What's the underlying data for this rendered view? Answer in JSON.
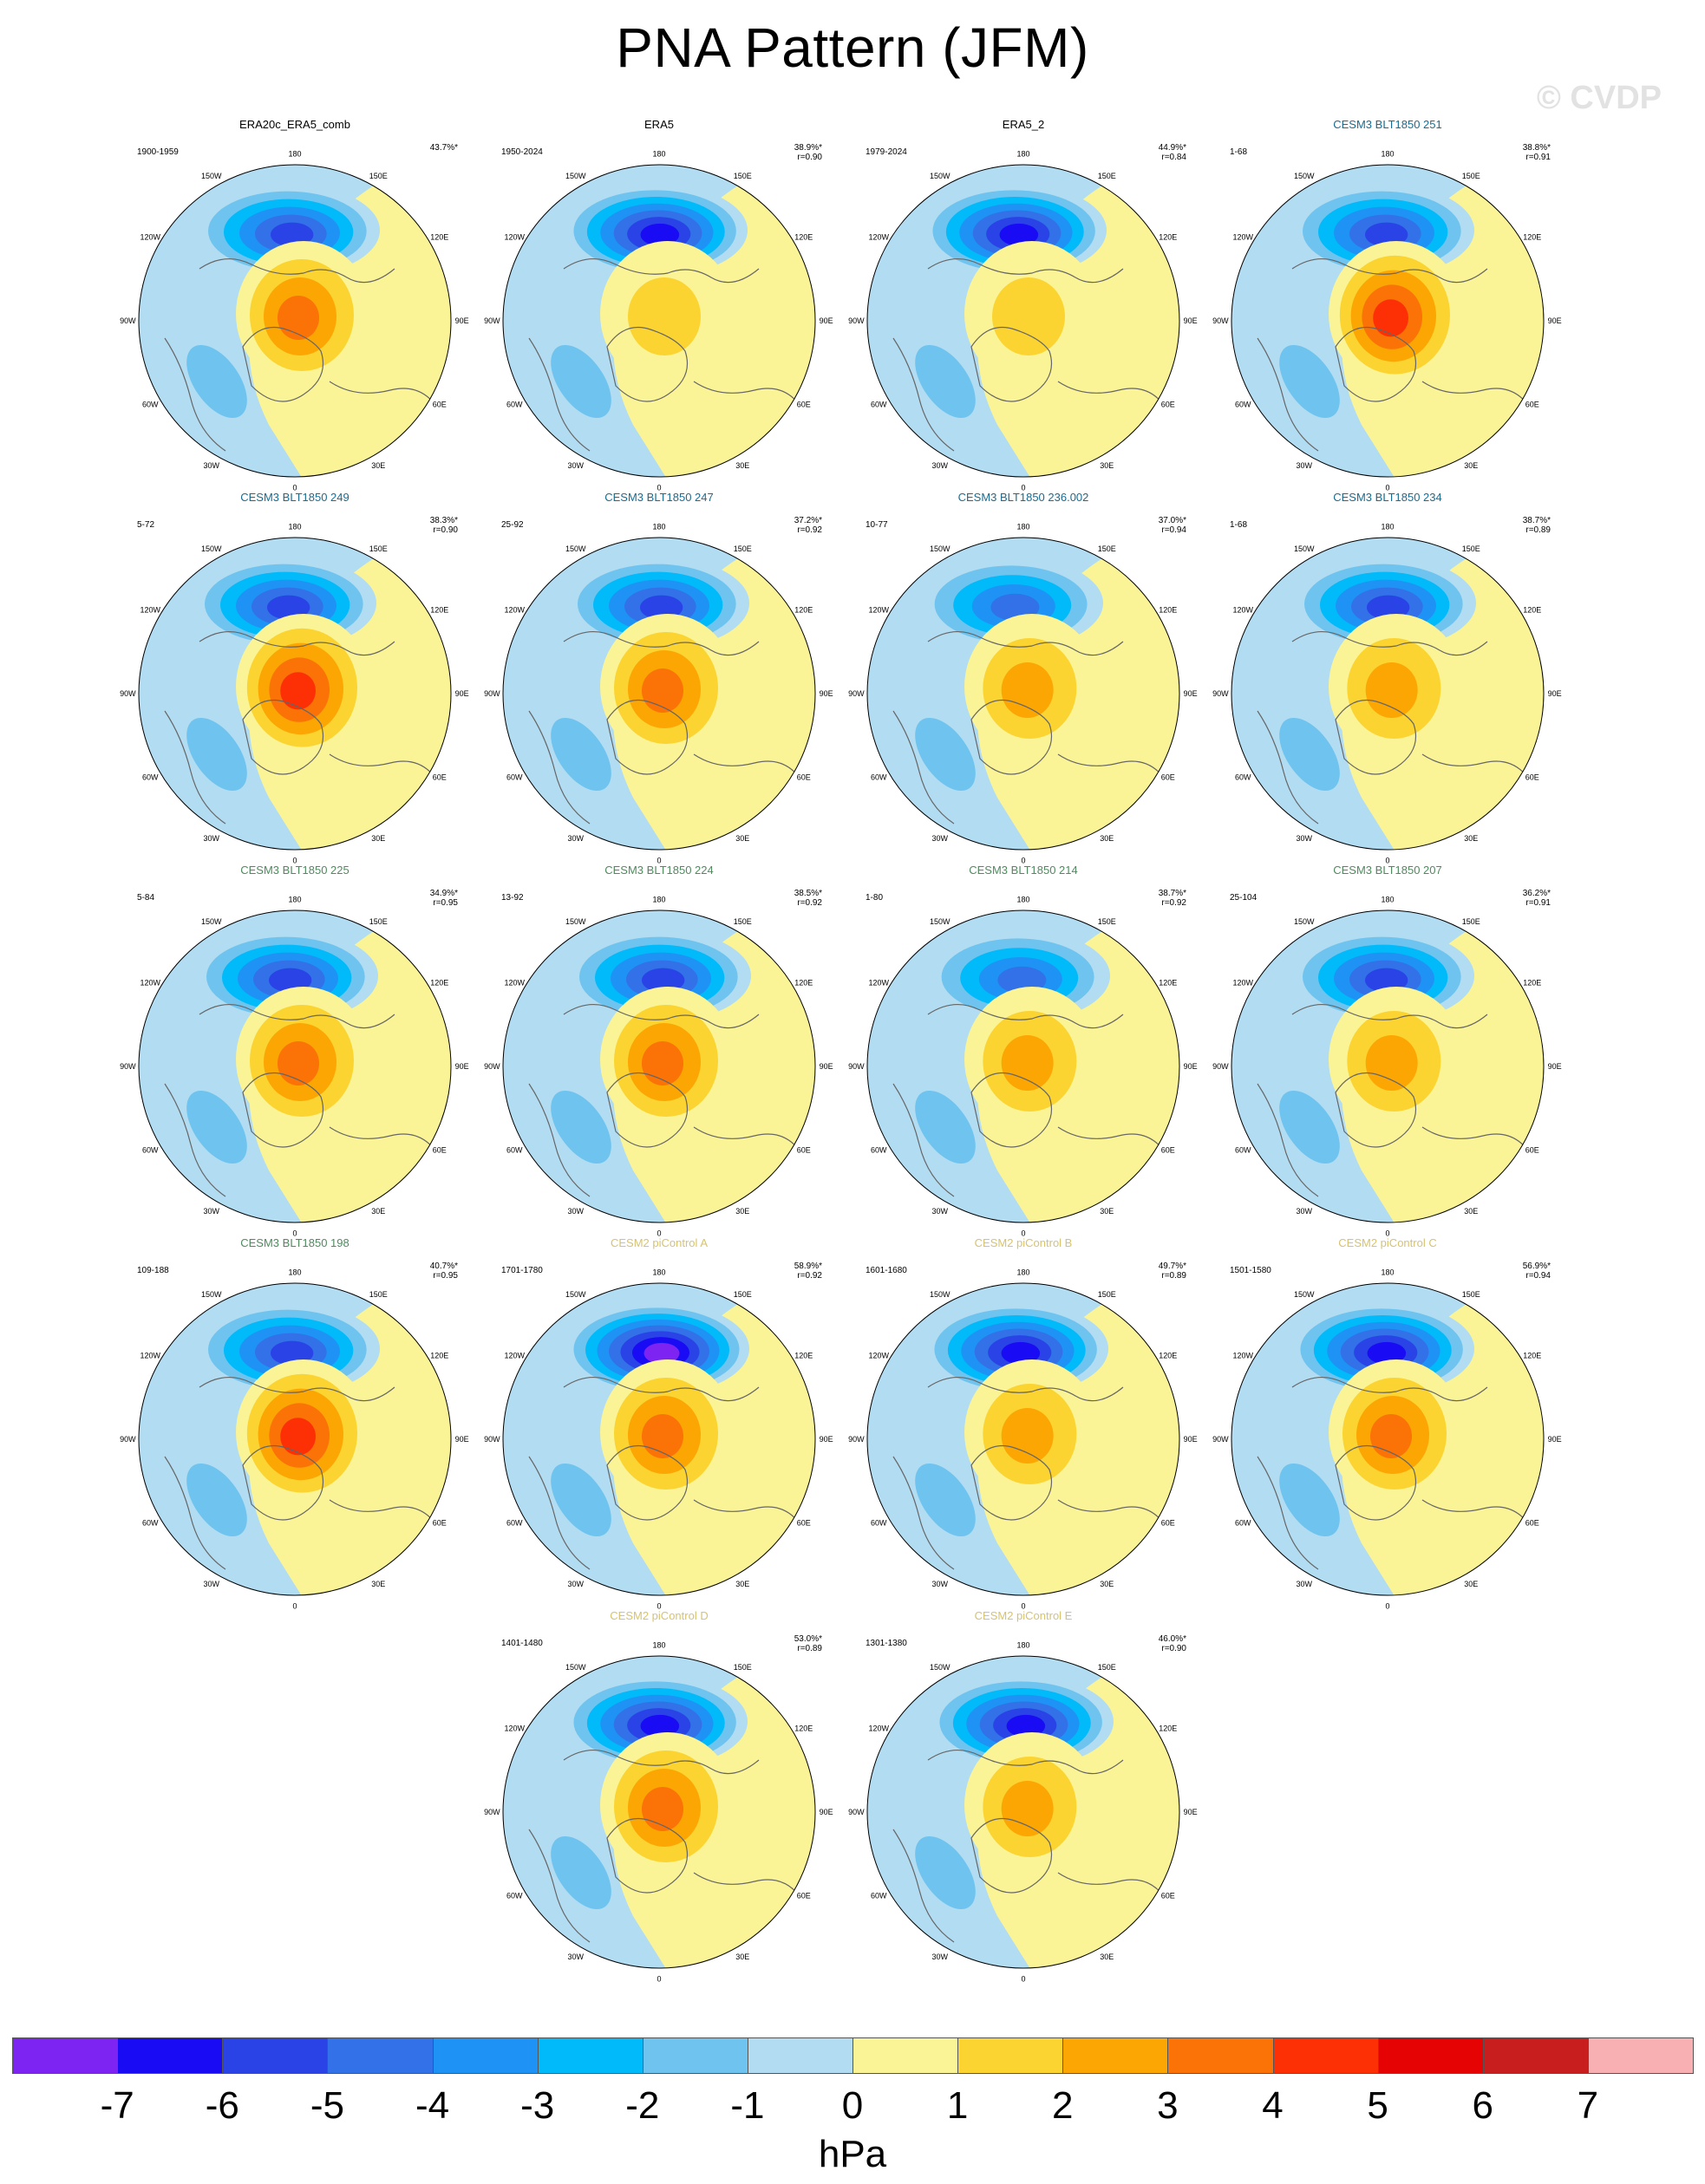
{
  "title": "PNA Pattern (JFM)",
  "watermark": "© CVDP",
  "chart_data": {
    "type": "polar-map-grid",
    "projection": "north-polar-stereographic",
    "variable": "sea level pressure PNA regression",
    "units": "hPa",
    "colorbar": {
      "ticks": [
        "-7",
        "-6",
        "-5",
        "-4",
        "-3",
        "-2",
        "-1",
        "0",
        "1",
        "2",
        "3",
        "4",
        "5",
        "6",
        "7"
      ],
      "colors": [
        "#7d23f2",
        "#1a0bf5",
        "#2a43e7",
        "#3271e8",
        "#1e93f5",
        "#00baf9",
        "#6ec4ef",
        "#b2dcf2",
        "#fbf496",
        "#fbd431",
        "#fca603",
        "#fb7207",
        "#fc3004",
        "#e50303",
        "#c91e1e",
        "#f8b0b2"
      ],
      "unit_label": "hPa"
    },
    "lon_labels": [
      "180",
      "150E",
      "120E",
      "90E",
      "60E",
      "30E",
      "0",
      "30W",
      "60W",
      "90W",
      "120W",
      "150W"
    ],
    "panels": [
      {
        "title": "ERA20c_ERA5_comb",
        "years": "1900-1959",
        "pct": "43.7%*",
        "r": "",
        "color": "#000000",
        "center": 3.5,
        "low": -6.0,
        "ltx": -0.5
      },
      {
        "title": "ERA5",
        "years": "1950-2024",
        "pct": "38.9%*",
        "r": "r=0.90",
        "color": "#000000",
        "center": 1.5,
        "low": -6.2,
        "ltx": -0.3
      },
      {
        "title": "ERA5_2",
        "years": "1979-2024",
        "pct": "44.9%*",
        "r": "r=0.84",
        "color": "#000000",
        "center": 1.2,
        "low": -6.5,
        "ltx": -0.6
      },
      {
        "title": "CESM3 BLT1850 251",
        "years": "1-68",
        "pct": "38.8%*",
        "r": "r=0.91",
        "color": "#1a6b8f",
        "center": 4.5,
        "low": -5.5,
        "ltx": -0.4
      },
      {
        "title": "CESM3 BLT1850 249",
        "years": "5-72",
        "pct": "38.3%*",
        "r": "r=0.90",
        "color": "#1a6b8f",
        "center": 4.2,
        "low": -5.5,
        "ltx": -0.7
      },
      {
        "title": "CESM3 BLT1850 247",
        "years": "25-92",
        "pct": "37.2%*",
        "r": "r=0.92",
        "color": "#1a6b8f",
        "center": 3.3,
        "low": -5.5,
        "ltx": -0.2
      },
      {
        "title": "CESM3 BLT1850 236.002",
        "years": "10-77",
        "pct": "37.0%*",
        "r": "r=0.94",
        "color": "#1a6b8f",
        "center": 3.0,
        "low": -5.0,
        "ltx": -0.8
      },
      {
        "title": "CESM3 BLT1850 234",
        "years": "1-68",
        "pct": "38.7%*",
        "r": "r=0.89",
        "color": "#1a6b8f",
        "center": 2.8,
        "low": -5.6,
        "ltx": -0.3
      },
      {
        "title": "CESM3 BLT1850 225",
        "years": "5-84",
        "pct": "34.9%*",
        "r": "r=0.95",
        "color": "#4f8a5e",
        "center": 3.2,
        "low": -5.2,
        "ltx": -0.6
      },
      {
        "title": "CESM3 BLT1850 224",
        "years": "13-92",
        "pct": "38.5%*",
        "r": "r=0.92",
        "color": "#4f8a5e",
        "center": 3.8,
        "low": -5.5,
        "ltx": -0.1
      },
      {
        "title": "CESM3 BLT1850 214",
        "years": "1-80",
        "pct": "38.7%*",
        "r": "r=0.92",
        "color": "#4f8a5e",
        "center": 2.5,
        "low": -5.0,
        "ltx": -0.4
      },
      {
        "title": "CESM3 BLT1850 207",
        "years": "25-104",
        "pct": "36.2%*",
        "r": "r=0.91",
        "color": "#4f8a5e",
        "center": 2.2,
        "low": -5.2,
        "ltx": -0.4
      },
      {
        "title": "CESM3 BLT1850 198",
        "years": "109-188",
        "pct": "40.7%*",
        "r": "r=0.95",
        "color": "#4f8a5e",
        "center": 4.4,
        "low": -5.5,
        "ltx": -0.5
      },
      {
        "title": "CESM2 piControl A",
        "years": "1701-1780",
        "pct": "58.9%*",
        "r": "r=0.92",
        "color": "#d6c36f",
        "center": 3.5,
        "low": -7.2,
        "ltx": -0.2
      },
      {
        "title": "CESM2 piControl B",
        "years": "1601-1680",
        "pct": "49.7%*",
        "r": "r=0.89",
        "color": "#d6c36f",
        "center": 2.6,
        "low": -6.8,
        "ltx": -0.5
      },
      {
        "title": "CESM2 piControl C",
        "years": "1501-1580",
        "pct": "56.9%*",
        "r": "r=0.94",
        "color": "#d6c36f",
        "center": 3.2,
        "low": -7.0,
        "ltx": -0.4
      },
      {
        "title": "CESM2 piControl D",
        "years": "1401-1480",
        "pct": "53.0%*",
        "r": "r=0.89",
        "color": "#d6c36f",
        "center": 3.6,
        "low": -6.9,
        "ltx": -0.3
      },
      {
        "title": "CESM2 piControl E",
        "years": "1301-1380",
        "pct": "46.0%*",
        "r": "r=0.90",
        "color": "#d6c36f",
        "center": 3.0,
        "low": -6.4,
        "ltx": -0.2
      }
    ]
  }
}
